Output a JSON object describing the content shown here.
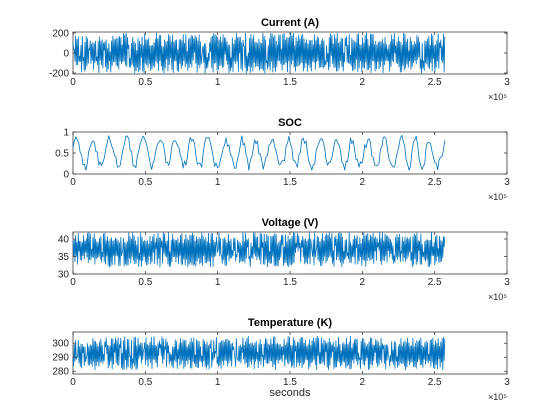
{
  "figure": {
    "background": "#ffffff",
    "line_color": "#0072BD"
  },
  "chart_data": [
    {
      "type": "line",
      "title": "Current (A)",
      "xlabel": "",
      "x_exponent_label": "×10⁵",
      "xlim": [
        0,
        3
      ],
      "x_ticks": [
        0,
        0.5,
        1,
        1.5,
        2,
        2.5,
        3
      ],
      "x_tick_labels": [
        "0",
        "0.5",
        "1",
        "1.5",
        "2",
        "2.5",
        "3"
      ],
      "ylim": [
        -210,
        210
      ],
      "y_ticks": [
        -200,
        0,
        200
      ],
      "y_tick_labels": [
        "-200",
        "0",
        "200"
      ],
      "x_data_range": [
        0,
        2.57
      ],
      "y_data_range": [
        -200,
        200
      ],
      "signal": "dense oscillation",
      "n_samples": 560,
      "seed": 11
    },
    {
      "type": "line",
      "title": "SOC",
      "xlabel": "",
      "x_exponent_label": "×10⁵",
      "xlim": [
        0,
        3
      ],
      "x_ticks": [
        0,
        0.5,
        1,
        1.5,
        2,
        2.5,
        3
      ],
      "x_tick_labels": [
        "0",
        "0.5",
        "1",
        "1.5",
        "2",
        "2.5",
        "3"
      ],
      "ylim": [
        0,
        1
      ],
      "y_ticks": [
        0,
        0.5,
        1
      ],
      "y_tick_labels": [
        "0",
        "0.5",
        "1"
      ],
      "x_data_range": [
        0,
        2.57
      ],
      "y_data_range": [
        0.08,
        0.93
      ],
      "signal": "slow oscillation",
      "n_samples": 260,
      "seed": 23
    },
    {
      "type": "line",
      "title": "Voltage (V)",
      "xlabel": "",
      "x_exponent_label": "×10⁵",
      "xlim": [
        0,
        3
      ],
      "x_ticks": [
        0,
        0.5,
        1,
        1.5,
        2,
        2.5,
        3
      ],
      "x_tick_labels": [
        "0",
        "0.5",
        "1",
        "1.5",
        "2",
        "2.5",
        "3"
      ],
      "ylim": [
        30,
        42
      ],
      "y_ticks": [
        30,
        35,
        40
      ],
      "y_tick_labels": [
        "30",
        "35",
        "40"
      ],
      "x_data_range": [
        0,
        2.57
      ],
      "y_data_range": [
        32,
        42
      ],
      "signal": "dense oscillation",
      "n_samples": 560,
      "seed": 37
    },
    {
      "type": "line",
      "title": "Temperature (K)",
      "xlabel": "seconds",
      "x_exponent_label": "×10⁵",
      "xlim": [
        0,
        3
      ],
      "x_ticks": [
        0,
        0.5,
        1,
        1.5,
        2,
        2.5,
        3
      ],
      "x_tick_labels": [
        "0",
        "0.5",
        "1",
        "1.5",
        "2",
        "2.5",
        "3"
      ],
      "ylim": [
        278,
        308
      ],
      "y_ticks": [
        280,
        290,
        300
      ],
      "y_tick_labels": [
        "280",
        "290",
        "300"
      ],
      "x_data_range": [
        0,
        2.57
      ],
      "y_data_range": [
        281,
        305
      ],
      "signal": "dense oscillation",
      "n_samples": 560,
      "seed": 53
    }
  ]
}
